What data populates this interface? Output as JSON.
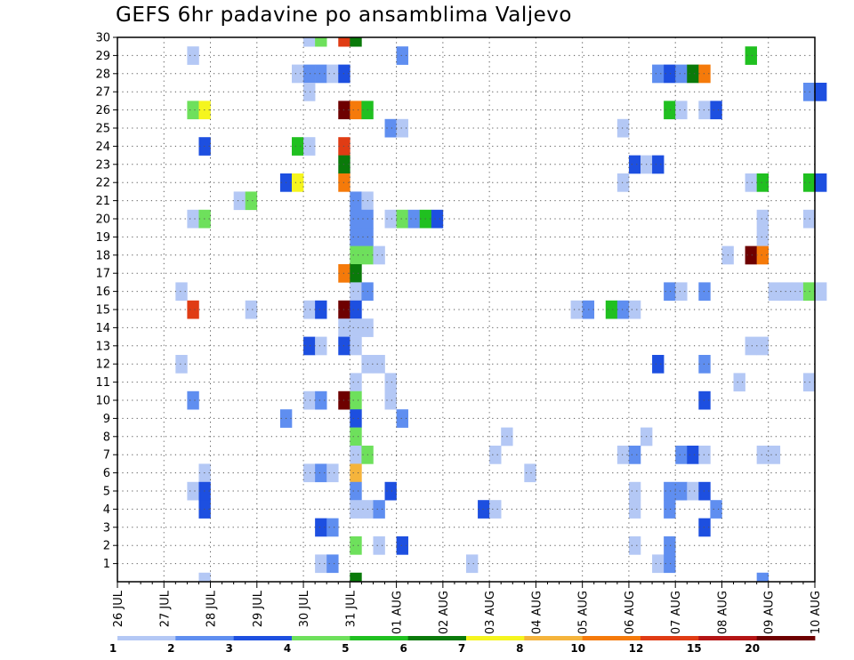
{
  "chart_data": {
    "type": "heatmap",
    "title": "GEFS 6hr padavine po ansamblima Valjevo",
    "x_ticks": [
      "26 JUL",
      "27 JUL",
      "28 JUL",
      "29 JUL",
      "30 JUL",
      "31 JUL",
      "01 AUG",
      "02 AUG",
      "03 AUG",
      "04 AUG",
      "05 AUG",
      "06 AUG",
      "07 AUG",
      "08 AUG",
      "09 AUG",
      "10 AUG"
    ],
    "y_ticks": [
      1,
      2,
      3,
      4,
      5,
      6,
      7,
      8,
      9,
      10,
      11,
      12,
      13,
      14,
      15,
      16,
      17,
      18,
      19,
      20,
      21,
      22,
      23,
      24,
      25,
      26,
      27,
      28,
      29,
      30
    ],
    "x_step_hours": 6,
    "xlim_days": [
      0,
      15
    ],
    "ylim_members": [
      0,
      30
    ],
    "grid": "dotted",
    "colorbar": {
      "position": "bottom",
      "labels": [
        "1",
        "2",
        "3",
        "4",
        "5",
        "6",
        "7",
        "8",
        "10",
        "12",
        "15",
        "20"
      ],
      "colors": [
        "#b4c8f5",
        "#5f8ef0",
        "#1d4fe0",
        "#6ee05c",
        "#20c020",
        "#0a7a0a",
        "#f5f51e",
        "#f5b43c",
        "#f57a0a",
        "#e03c14",
        "#b41414",
        "#6e0000"
      ]
    },
    "cells": [
      {
        "member": 30,
        "day": "30 JUL",
        "hour": 0,
        "class": 0
      },
      {
        "member": 30,
        "day": "30 JUL",
        "hour": 6,
        "class": 3
      },
      {
        "member": 30,
        "day": "30 JUL",
        "hour": 18,
        "class": 9
      },
      {
        "member": 30,
        "day": "31 JUL",
        "hour": 0,
        "class": 5
      },
      {
        "member": 29,
        "day": "27 JUL",
        "hour": 12,
        "class": 0
      },
      {
        "member": 29,
        "day": "01 AUG",
        "hour": 0,
        "class": 1
      },
      {
        "member": 29,
        "day": "08 AUG",
        "hour": 12,
        "class": 4
      },
      {
        "member": 28,
        "day": "29 JUL",
        "hour": 18,
        "class": 0
      },
      {
        "member": 28,
        "day": "30 JUL",
        "hour": 0,
        "class": 1
      },
      {
        "member": 28,
        "day": "30 JUL",
        "hour": 6,
        "class": 1
      },
      {
        "member": 28,
        "day": "30 JUL",
        "hour": 12,
        "class": 0
      },
      {
        "member": 28,
        "day": "30 JUL",
        "hour": 18,
        "class": 2
      },
      {
        "member": 28,
        "day": "06 AUG",
        "hour": 12,
        "class": 1
      },
      {
        "member": 28,
        "day": "06 AUG",
        "hour": 18,
        "class": 2
      },
      {
        "member": 28,
        "day": "07 AUG",
        "hour": 0,
        "class": 1
      },
      {
        "member": 28,
        "day": "07 AUG",
        "hour": 6,
        "class": 5
      },
      {
        "member": 28,
        "day": "07 AUG",
        "hour": 12,
        "class": 8
      },
      {
        "member": 27,
        "day": "30 JUL",
        "hour": 0,
        "class": 0
      },
      {
        "member": 27,
        "day": "09 AUG",
        "hour": 18,
        "class": 1
      },
      {
        "member": 27,
        "day": "10 AUG",
        "hour": 0,
        "class": 2
      },
      {
        "member": 26,
        "day": "27 JUL",
        "hour": 12,
        "class": 3
      },
      {
        "member": 26,
        "day": "27 JUL",
        "hour": 18,
        "class": 6
      },
      {
        "member": 26,
        "day": "30 JUL",
        "hour": 18,
        "class": 11
      },
      {
        "member": 26,
        "day": "31 JUL",
        "hour": 0,
        "class": 8
      },
      {
        "member": 26,
        "day": "31 JUL",
        "hour": 6,
        "class": 4
      },
      {
        "member": 26,
        "day": "06 AUG",
        "hour": 18,
        "class": 4
      },
      {
        "member": 26,
        "day": "07 AUG",
        "hour": 0,
        "class": 0
      },
      {
        "member": 26,
        "day": "07 AUG",
        "hour": 12,
        "class": 0
      },
      {
        "member": 26,
        "day": "07 AUG",
        "hour": 18,
        "class": 2
      },
      {
        "member": 25,
        "day": "31 JUL",
        "hour": 18,
        "class": 1
      },
      {
        "member": 25,
        "day": "01 AUG",
        "hour": 0,
        "class": 0
      },
      {
        "member": 25,
        "day": "05 AUG",
        "hour": 18,
        "class": 0
      },
      {
        "member": 24,
        "day": "27 JUL",
        "hour": 18,
        "class": 2
      },
      {
        "member": 24,
        "day": "29 JUL",
        "hour": 18,
        "class": 4
      },
      {
        "member": 24,
        "day": "30 JUL",
        "hour": 0,
        "class": 0
      },
      {
        "member": 24,
        "day": "30 JUL",
        "hour": 18,
        "class": 9
      },
      {
        "member": 23,
        "day": "30 JUL",
        "hour": 18,
        "class": 5
      },
      {
        "member": 23,
        "day": "06 AUG",
        "hour": 0,
        "class": 2
      },
      {
        "member": 23,
        "day": "06 AUG",
        "hour": 6,
        "class": 0
      },
      {
        "member": 23,
        "day": "06 AUG",
        "hour": 12,
        "class": 2
      },
      {
        "member": 22,
        "day": "29 JUL",
        "hour": 12,
        "class": 2
      },
      {
        "member": 22,
        "day": "29 JUL",
        "hour": 18,
        "class": 6
      },
      {
        "member": 22,
        "day": "30 JUL",
        "hour": 18,
        "class": 8
      },
      {
        "member": 22,
        "day": "05 AUG",
        "hour": 18,
        "class": 0
      },
      {
        "member": 22,
        "day": "08 AUG",
        "hour": 12,
        "class": 0
      },
      {
        "member": 22,
        "day": "08 AUG",
        "hour": 18,
        "class": 4
      },
      {
        "member": 22,
        "day": "09 AUG",
        "hour": 18,
        "class": 4
      },
      {
        "member": 22,
        "day": "10 AUG",
        "hour": 0,
        "class": 2
      },
      {
        "member": 21,
        "day": "28 JUL",
        "hour": 12,
        "class": 0
      },
      {
        "member": 21,
        "day": "28 JUL",
        "hour": 18,
        "class": 3
      },
      {
        "member": 21,
        "day": "31 JUL",
        "hour": 0,
        "class": 1
      },
      {
        "member": 21,
        "day": "31 JUL",
        "hour": 6,
        "class": 0
      },
      {
        "member": 20,
        "day": "27 JUL",
        "hour": 12,
        "class": 0
      },
      {
        "member": 20,
        "day": "27 JUL",
        "hour": 18,
        "class": 3
      },
      {
        "member": 20,
        "day": "31 JUL",
        "hour": 0,
        "class": 1
      },
      {
        "member": 20,
        "day": "31 JUL",
        "hour": 6,
        "class": 1
      },
      {
        "member": 20,
        "day": "31 JUL",
        "hour": 18,
        "class": 0
      },
      {
        "member": 20,
        "day": "01 AUG",
        "hour": 0,
        "class": 3
      },
      {
        "member": 20,
        "day": "01 AUG",
        "hour": 6,
        "class": 1
      },
      {
        "member": 20,
        "day": "01 AUG",
        "hour": 12,
        "class": 4
      },
      {
        "member": 20,
        "day": "01 AUG",
        "hour": 18,
        "class": 2
      },
      {
        "member": 20,
        "day": "08 AUG",
        "hour": 18,
        "class": 0
      },
      {
        "member": 20,
        "day": "09 AUG",
        "hour": 18,
        "class": 0
      },
      {
        "member": 19,
        "day": "31 JUL",
        "hour": 0,
        "class": 1
      },
      {
        "member": 19,
        "day": "31 JUL",
        "hour": 6,
        "class": 1
      },
      {
        "member": 19,
        "day": "08 AUG",
        "hour": 18,
        "class": 0
      },
      {
        "member": 18,
        "day": "31 JUL",
        "hour": 0,
        "class": 3
      },
      {
        "member": 18,
        "day": "31 JUL",
        "hour": 6,
        "class": 3
      },
      {
        "member": 18,
        "day": "31 JUL",
        "hour": 12,
        "class": 0
      },
      {
        "member": 18,
        "day": "08 AUG",
        "hour": 0,
        "class": 0
      },
      {
        "member": 18,
        "day": "08 AUG",
        "hour": 12,
        "class": 11
      },
      {
        "member": 18,
        "day": "08 AUG",
        "hour": 18,
        "class": 8
      },
      {
        "member": 17,
        "day": "30 JUL",
        "hour": 18,
        "class": 8
      },
      {
        "member": 17,
        "day": "31 JUL",
        "hour": 0,
        "class": 5
      },
      {
        "member": 16,
        "day": "27 JUL",
        "hour": 6,
        "class": 0
      },
      {
        "member": 16,
        "day": "31 JUL",
        "hour": 0,
        "class": 0
      },
      {
        "member": 16,
        "day": "31 JUL",
        "hour": 6,
        "class": 1
      },
      {
        "member": 16,
        "day": "06 AUG",
        "hour": 18,
        "class": 1
      },
      {
        "member": 16,
        "day": "07 AUG",
        "hour": 0,
        "class": 0
      },
      {
        "member": 16,
        "day": "07 AUG",
        "hour": 12,
        "class": 1
      },
      {
        "member": 16,
        "day": "09 AUG",
        "hour": 0,
        "class": 0
      },
      {
        "member": 16,
        "day": "09 AUG",
        "hour": 6,
        "class": 0
      },
      {
        "member": 16,
        "day": "09 AUG",
        "hour": 12,
        "class": 0
      },
      {
        "member": 16,
        "day": "09 AUG",
        "hour": 18,
        "class": 3
      },
      {
        "member": 16,
        "day": "10 AUG",
        "hour": 0,
        "class": 0
      },
      {
        "member": 15,
        "day": "27 JUL",
        "hour": 12,
        "class": 9
      },
      {
        "member": 15,
        "day": "28 JUL",
        "hour": 18,
        "class": 0
      },
      {
        "member": 15,
        "day": "30 JUL",
        "hour": 0,
        "class": 0
      },
      {
        "member": 15,
        "day": "30 JUL",
        "hour": 6,
        "class": 2
      },
      {
        "member": 15,
        "day": "30 JUL",
        "hour": 18,
        "class": 11
      },
      {
        "member": 15,
        "day": "31 JUL",
        "hour": 0,
        "class": 2
      },
      {
        "member": 15,
        "day": "04 AUG",
        "hour": 18,
        "class": 0
      },
      {
        "member": 15,
        "day": "05 AUG",
        "hour": 0,
        "class": 1
      },
      {
        "member": 15,
        "day": "05 AUG",
        "hour": 12,
        "class": 4
      },
      {
        "member": 15,
        "day": "05 AUG",
        "hour": 18,
        "class": 1
      },
      {
        "member": 15,
        "day": "06 AUG",
        "hour": 0,
        "class": 0
      },
      {
        "member": 14,
        "day": "30 JUL",
        "hour": 18,
        "class": 0
      },
      {
        "member": 14,
        "day": "31 JUL",
        "hour": 0,
        "class": 0
      },
      {
        "member": 14,
        "day": "31 JUL",
        "hour": 6,
        "class": 0
      },
      {
        "member": 13,
        "day": "30 JUL",
        "hour": 0,
        "class": 2
      },
      {
        "member": 13,
        "day": "30 JUL",
        "hour": 6,
        "class": 0
      },
      {
        "member": 13,
        "day": "30 JUL",
        "hour": 18,
        "class": 2
      },
      {
        "member": 13,
        "day": "31 JUL",
        "hour": 0,
        "class": 0
      },
      {
        "member": 13,
        "day": "08 AUG",
        "hour": 12,
        "class": 0
      },
      {
        "member": 13,
        "day": "08 AUG",
        "hour": 18,
        "class": 0
      },
      {
        "member": 12,
        "day": "27 JUL",
        "hour": 6,
        "class": 0
      },
      {
        "member": 12,
        "day": "31 JUL",
        "hour": 6,
        "class": 0
      },
      {
        "member": 12,
        "day": "31 JUL",
        "hour": 12,
        "class": 0
      },
      {
        "member": 12,
        "day": "06 AUG",
        "hour": 12,
        "class": 2
      },
      {
        "member": 12,
        "day": "07 AUG",
        "hour": 12,
        "class": 1
      },
      {
        "member": 11,
        "day": "31 JUL",
        "hour": 0,
        "class": 0
      },
      {
        "member": 11,
        "day": "31 JUL",
        "hour": 18,
        "class": 0
      },
      {
        "member": 11,
        "day": "08 AUG",
        "hour": 6,
        "class": 0
      },
      {
        "member": 11,
        "day": "09 AUG",
        "hour": 18,
        "class": 0
      },
      {
        "member": 10,
        "day": "27 JUL",
        "hour": 12,
        "class": 1
      },
      {
        "member": 10,
        "day": "30 JUL",
        "hour": 0,
        "class": 0
      },
      {
        "member": 10,
        "day": "30 JUL",
        "hour": 6,
        "class": 1
      },
      {
        "member": 10,
        "day": "30 JUL",
        "hour": 18,
        "class": 11
      },
      {
        "member": 10,
        "day": "31 JUL",
        "hour": 0,
        "class": 3
      },
      {
        "member": 10,
        "day": "31 JUL",
        "hour": 18,
        "class": 0
      },
      {
        "member": 10,
        "day": "07 AUG",
        "hour": 12,
        "class": 2
      },
      {
        "member": 9,
        "day": "29 JUL",
        "hour": 12,
        "class": 1
      },
      {
        "member": 9,
        "day": "31 JUL",
        "hour": 0,
        "class": 2
      },
      {
        "member": 9,
        "day": "01 AUG",
        "hour": 0,
        "class": 1
      },
      {
        "member": 8,
        "day": "31 JUL",
        "hour": 0,
        "class": 3
      },
      {
        "member": 8,
        "day": "03 AUG",
        "hour": 6,
        "class": 0
      },
      {
        "member": 8,
        "day": "06 AUG",
        "hour": 6,
        "class": 0
      },
      {
        "member": 7,
        "day": "31 JUL",
        "hour": 0,
        "class": 0
      },
      {
        "member": 7,
        "day": "31 JUL",
        "hour": 6,
        "class": 3
      },
      {
        "member": 7,
        "day": "03 AUG",
        "hour": 0,
        "class": 0
      },
      {
        "member": 7,
        "day": "05 AUG",
        "hour": 18,
        "class": 0
      },
      {
        "member": 7,
        "day": "06 AUG",
        "hour": 0,
        "class": 1
      },
      {
        "member": 7,
        "day": "07 AUG",
        "hour": 0,
        "class": 1
      },
      {
        "member": 7,
        "day": "07 AUG",
        "hour": 6,
        "class": 2
      },
      {
        "member": 7,
        "day": "07 AUG",
        "hour": 12,
        "class": 0
      },
      {
        "member": 7,
        "day": "08 AUG",
        "hour": 18,
        "class": 0
      },
      {
        "member": 7,
        "day": "09 AUG",
        "hour": 0,
        "class": 0
      },
      {
        "member": 6,
        "day": "27 JUL",
        "hour": 18,
        "class": 0
      },
      {
        "member": 6,
        "day": "30 JUL",
        "hour": 0,
        "class": 0
      },
      {
        "member": 6,
        "day": "30 JUL",
        "hour": 6,
        "class": 1
      },
      {
        "member": 6,
        "day": "30 JUL",
        "hour": 12,
        "class": 0
      },
      {
        "member": 6,
        "day": "31 JUL",
        "hour": 0,
        "class": 7
      },
      {
        "member": 6,
        "day": "03 AUG",
        "hour": 18,
        "class": 0
      },
      {
        "member": 5,
        "day": "27 JUL",
        "hour": 12,
        "class": 0
      },
      {
        "member": 5,
        "day": "27 JUL",
        "hour": 18,
        "class": 2
      },
      {
        "member": 5,
        "day": "31 JUL",
        "hour": 0,
        "class": 1
      },
      {
        "member": 5,
        "day": "31 JUL",
        "hour": 18,
        "class": 2
      },
      {
        "member": 5,
        "day": "06 AUG",
        "hour": 0,
        "class": 0
      },
      {
        "member": 5,
        "day": "06 AUG",
        "hour": 18,
        "class": 1
      },
      {
        "member": 5,
        "day": "07 AUG",
        "hour": 0,
        "class": 1
      },
      {
        "member": 5,
        "day": "07 AUG",
        "hour": 6,
        "class": 0
      },
      {
        "member": 5,
        "day": "07 AUG",
        "hour": 12,
        "class": 2
      },
      {
        "member": 4,
        "day": "27 JUL",
        "hour": 18,
        "class": 2
      },
      {
        "member": 4,
        "day": "31 JUL",
        "hour": 0,
        "class": 0
      },
      {
        "member": 4,
        "day": "31 JUL",
        "hour": 6,
        "class": 0
      },
      {
        "member": 4,
        "day": "31 JUL",
        "hour": 12,
        "class": 1
      },
      {
        "member": 4,
        "day": "02 AUG",
        "hour": 18,
        "class": 2
      },
      {
        "member": 4,
        "day": "03 AUG",
        "hour": 0,
        "class": 0
      },
      {
        "member": 4,
        "day": "06 AUG",
        "hour": 0,
        "class": 0
      },
      {
        "member": 4,
        "day": "06 AUG",
        "hour": 18,
        "class": 1
      },
      {
        "member": 4,
        "day": "07 AUG",
        "hour": 18,
        "class": 1
      },
      {
        "member": 3,
        "day": "30 JUL",
        "hour": 6,
        "class": 2
      },
      {
        "member": 3,
        "day": "30 JUL",
        "hour": 12,
        "class": 1
      },
      {
        "member": 3,
        "day": "07 AUG",
        "hour": 12,
        "class": 2
      },
      {
        "member": 2,
        "day": "31 JUL",
        "hour": 0,
        "class": 3
      },
      {
        "member": 2,
        "day": "31 JUL",
        "hour": 12,
        "class": 0
      },
      {
        "member": 2,
        "day": "01 AUG",
        "hour": 0,
        "class": 2
      },
      {
        "member": 2,
        "day": "06 AUG",
        "hour": 0,
        "class": 0
      },
      {
        "member": 2,
        "day": "06 AUG",
        "hour": 18,
        "class": 1
      },
      {
        "member": 1,
        "day": "30 JUL",
        "hour": 6,
        "class": 0
      },
      {
        "member": 1,
        "day": "30 JUL",
        "hour": 12,
        "class": 1
      },
      {
        "member": 1,
        "day": "02 AUG",
        "hour": 12,
        "class": 0
      },
      {
        "member": 1,
        "day": "06 AUG",
        "hour": 12,
        "class": 0
      },
      {
        "member": 1,
        "day": "06 AUG",
        "hour": 18,
        "class": 1
      },
      {
        "member": 0,
        "day": "27 JUL",
        "hour": 18,
        "class": 0
      },
      {
        "member": 0,
        "day": "31 JUL",
        "hour": 0,
        "class": 5
      },
      {
        "member": 0,
        "day": "08 AUG",
        "hour": 18,
        "class": 1
      }
    ]
  }
}
